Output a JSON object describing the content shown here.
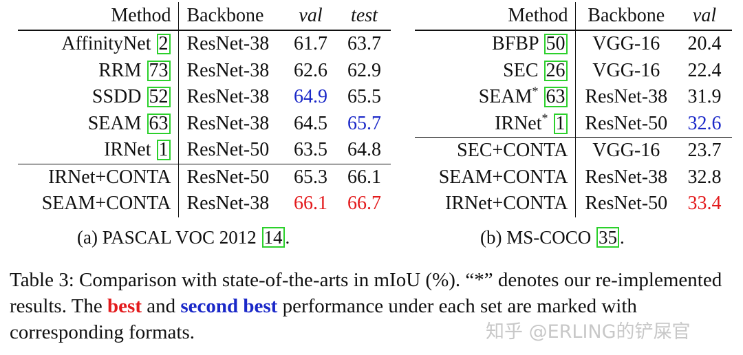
{
  "table_a": {
    "headers": {
      "method": "Method",
      "backbone": "Backbone",
      "val": "val",
      "test": "test"
    },
    "rows": [
      {
        "method": "AffinityNet",
        "ref": "2",
        "backbone": "ResNet-38",
        "val": "61.7",
        "test": "63.7",
        "val_style": "",
        "test_style": ""
      },
      {
        "method": "RRM",
        "ref": "73",
        "backbone": "ResNet-38",
        "val": "62.6",
        "test": "62.9",
        "val_style": "",
        "test_style": ""
      },
      {
        "method": "SSDD",
        "ref": "52",
        "backbone": "ResNet-38",
        "val": "64.9",
        "test": "65.5",
        "val_style": "second",
        "test_style": ""
      },
      {
        "method": "SEAM",
        "ref": "63",
        "backbone": "ResNet-38",
        "val": "64.5",
        "test": "65.7",
        "val_style": "",
        "test_style": "second"
      },
      {
        "method": "IRNet",
        "ref": "1",
        "backbone": "ResNet-50",
        "val": "63.5",
        "test": "64.8",
        "val_style": "",
        "test_style": ""
      },
      {
        "method": "IRNet+CONTA",
        "ref": "",
        "backbone": "ResNet-50",
        "val": "65.3",
        "test": "66.1",
        "val_style": "",
        "test_style": ""
      },
      {
        "method": "SEAM+CONTA",
        "ref": "",
        "backbone": "ResNet-38",
        "val": "66.1",
        "test": "66.7",
        "val_style": "best",
        "test_style": "best"
      }
    ],
    "caption_prefix": "(a) PASCAL VOC 2012 ",
    "caption_ref": "14",
    "caption_suffix": "."
  },
  "table_b": {
    "headers": {
      "method": "Method",
      "backbone": "Backbone",
      "val": "val"
    },
    "rows": [
      {
        "method": "BFBP",
        "ref": "50",
        "star": "",
        "backbone": "VGG-16",
        "val": "20.4",
        "val_style": ""
      },
      {
        "method": "SEC",
        "ref": "26",
        "star": "",
        "backbone": "VGG-16",
        "val": "22.4",
        "val_style": ""
      },
      {
        "method": "SEAM",
        "ref": "63",
        "star": "*",
        "backbone": "ResNet-38",
        "val": "31.9",
        "val_style": ""
      },
      {
        "method": "IRNet",
        "ref": "1",
        "star": "*",
        "backbone": "ResNet-50",
        "val": "32.6",
        "val_style": "second"
      },
      {
        "method": "SEC+CONTA",
        "ref": "",
        "star": "",
        "backbone": "VGG-16",
        "val": "23.7",
        "val_style": ""
      },
      {
        "method": "SEAM+CONTA",
        "ref": "",
        "star": "",
        "backbone": "ResNet-38",
        "val": "32.8",
        "val_style": ""
      },
      {
        "method": "IRNet+CONTA",
        "ref": "",
        "star": "",
        "backbone": "ResNet-50",
        "val": "33.4",
        "val_style": "best"
      }
    ],
    "caption_prefix": "(b) MS-COCO ",
    "caption_ref": "35",
    "caption_suffix": "."
  },
  "caption": {
    "part1": "Table 3: Comparison with state-of-the-arts in mIoU (%). “*” denotes our re-implemented results. The ",
    "best": "best",
    "and": " and ",
    "second": "second best",
    "part2": " performance under each set are marked with corresponding formats."
  },
  "watermark": "知乎 @ERLING的铲屎官",
  "colors": {
    "best": "#e31a1c",
    "second_best": "#1a28c8",
    "ref_box": "#2bd02b"
  }
}
